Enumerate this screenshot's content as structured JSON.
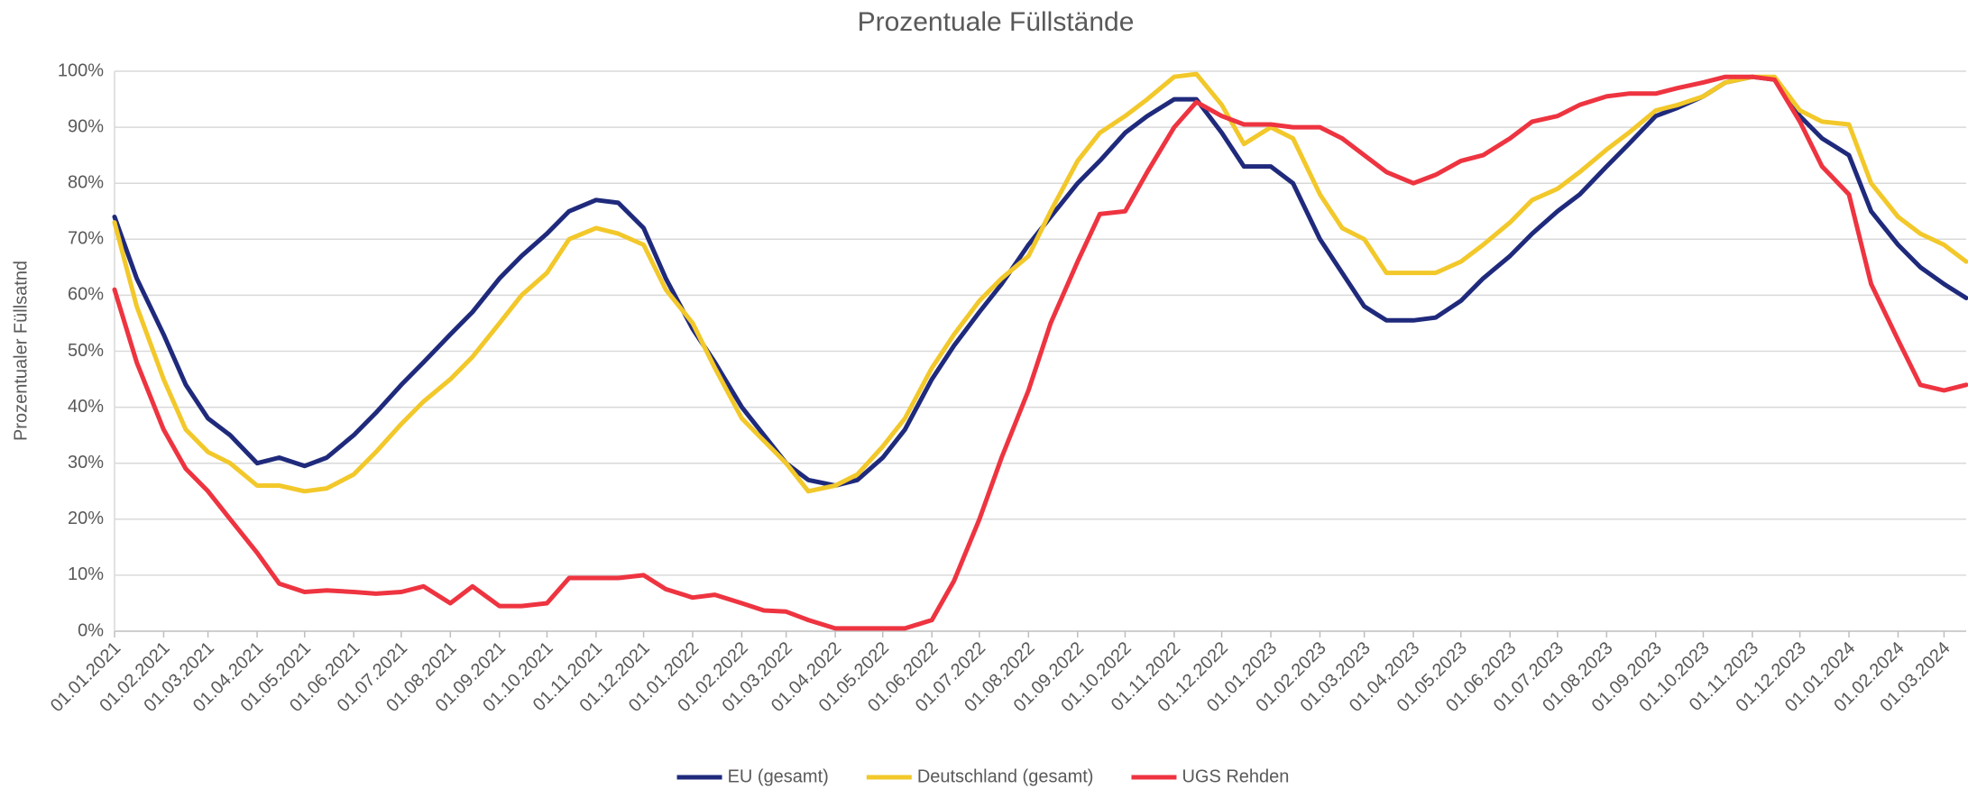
{
  "chart_data": {
    "type": "line",
    "title": "Prozentuale Füllstände",
    "y_label": "Prozentualer Füllsatnd",
    "x": [
      "2021-01-01",
      "2021-01-15",
      "2021-02-01",
      "2021-02-15",
      "2021-03-01",
      "2021-03-15",
      "2021-04-01",
      "2021-04-15",
      "2021-05-01",
      "2021-05-15",
      "2021-06-01",
      "2021-06-15",
      "2021-07-01",
      "2021-07-15",
      "2021-08-01",
      "2021-08-15",
      "2021-09-01",
      "2021-09-15",
      "2021-10-01",
      "2021-10-15",
      "2021-11-01",
      "2021-11-15",
      "2021-12-01",
      "2021-12-15",
      "2022-01-01",
      "2022-01-15",
      "2022-02-01",
      "2022-02-15",
      "2022-03-01",
      "2022-03-15",
      "2022-04-01",
      "2022-04-15",
      "2022-05-01",
      "2022-05-15",
      "2022-06-01",
      "2022-06-15",
      "2022-07-01",
      "2022-07-15",
      "2022-08-01",
      "2022-08-15",
      "2022-09-01",
      "2022-09-15",
      "2022-10-01",
      "2022-10-15",
      "2022-11-01",
      "2022-11-15",
      "2022-12-01",
      "2022-12-15",
      "2023-01-01",
      "2023-01-15",
      "2023-02-01",
      "2023-02-15",
      "2023-03-01",
      "2023-03-15",
      "2023-04-01",
      "2023-04-15",
      "2023-05-01",
      "2023-05-15",
      "2023-06-01",
      "2023-06-15",
      "2023-07-01",
      "2023-07-15",
      "2023-08-01",
      "2023-08-15",
      "2023-09-01",
      "2023-09-15",
      "2023-10-01",
      "2023-10-15",
      "2023-11-01",
      "2023-11-15",
      "2023-12-01",
      "2023-12-15",
      "2024-01-01",
      "2024-01-15",
      "2024-02-01",
      "2024-02-15",
      "2024-03-01",
      "2024-03-15"
    ],
    "series": [
      {
        "name": "EU (gesamt)",
        "color": "#1f2a7c",
        "values": [
          74,
          63,
          53,
          44,
          38,
          35,
          30,
          31,
          29.5,
          31,
          35,
          39,
          44,
          48,
          53,
          57,
          63,
          67,
          71,
          75,
          77,
          76.5,
          72,
          63,
          54,
          48,
          40,
          35,
          30,
          27,
          26,
          27,
          31,
          36,
          45,
          51,
          57,
          62,
          69,
          74,
          80,
          84,
          89,
          92,
          95,
          95,
          89,
          83,
          83,
          80,
          70,
          64,
          58,
          55.5,
          55.5,
          56,
          59,
          63,
          67,
          71,
          75,
          78,
          83,
          87,
          92,
          93.5,
          95.5,
          98,
          99,
          98.5,
          92,
          88,
          85,
          75,
          69,
          65,
          62,
          59.5
        ]
      },
      {
        "name": "Deutschland (gesamt)",
        "color": "#f2c82a",
        "values": [
          73,
          58,
          45,
          36,
          32,
          30,
          26,
          26,
          25,
          25.5,
          28,
          32,
          37,
          41,
          45,
          49,
          55,
          60,
          64,
          70,
          72,
          71,
          69,
          61,
          55,
          47,
          38,
          34,
          30,
          25,
          26,
          28,
          33,
          38,
          47,
          53,
          59,
          63,
          67,
          75,
          84,
          89,
          92,
          95,
          99,
          99.5,
          94,
          87,
          90,
          88,
          78,
          72,
          70,
          64,
          64,
          64,
          66,
          69,
          73,
          77,
          79,
          82,
          86,
          89,
          93,
          94,
          95.5,
          98,
          99,
          99,
          93,
          91,
          90.5,
          80,
          74,
          71,
          69,
          66
        ]
      },
      {
        "name": "UGS Rehden",
        "color": "#ee3440",
        "values": [
          61,
          48,
          36,
          29,
          25,
          20,
          14,
          8.5,
          7,
          7.3,
          7,
          6.7,
          7,
          8,
          5,
          8,
          4.5,
          4.5,
          5,
          9.5,
          9.5,
          9.5,
          10,
          7.5,
          6,
          6.5,
          5,
          3.7,
          3.5,
          2,
          0.5,
          0.5,
          0.5,
          0.5,
          2,
          9,
          20,
          31,
          43,
          55,
          66,
          74.5,
          75,
          82,
          90,
          94.5,
          92,
          90.5,
          90.5,
          90,
          90,
          88,
          85,
          82,
          80,
          81.5,
          84,
          85,
          88,
          91,
          92,
          94,
          95.5,
          96,
          96,
          97,
          98,
          99,
          99,
          98.5,
          91,
          83,
          78,
          62,
          52,
          44,
          43,
          44
        ]
      }
    ],
    "xlim": [
      "2021-01-01",
      "2024-03-15"
    ],
    "xticks": [
      {
        "value": "2021-01-01",
        "label": "01.01.2021"
      },
      {
        "value": "2021-02-01",
        "label": "01.02.2021"
      },
      {
        "value": "2021-03-01",
        "label": "01.03.2021"
      },
      {
        "value": "2021-04-01",
        "label": "01.04.2021"
      },
      {
        "value": "2021-05-01",
        "label": "01.05.2021"
      },
      {
        "value": "2021-06-01",
        "label": "01.06.2021"
      },
      {
        "value": "2021-07-01",
        "label": "01.07.2021"
      },
      {
        "value": "2021-08-01",
        "label": "01.08.2021"
      },
      {
        "value": "2021-09-01",
        "label": "01.09.2021"
      },
      {
        "value": "2021-10-01",
        "label": "01.10.2021"
      },
      {
        "value": "2021-11-01",
        "label": "01.11.2021"
      },
      {
        "value": "2021-12-01",
        "label": "01.12.2021"
      },
      {
        "value": "2022-01-01",
        "label": "01.01.2022"
      },
      {
        "value": "2022-02-01",
        "label": "01.02.2022"
      },
      {
        "value": "2022-03-01",
        "label": "01.03.2022"
      },
      {
        "value": "2022-04-01",
        "label": "01.04.2022"
      },
      {
        "value": "2022-05-01",
        "label": "01.05.2022"
      },
      {
        "value": "2022-06-01",
        "label": "01.06.2022"
      },
      {
        "value": "2022-07-01",
        "label": "01.07.2022"
      },
      {
        "value": "2022-08-01",
        "label": "01.08.2022"
      },
      {
        "value": "2022-09-01",
        "label": "01.09.2022"
      },
      {
        "value": "2022-10-01",
        "label": "01.10.2022"
      },
      {
        "value": "2022-11-01",
        "label": "01.11.2022"
      },
      {
        "value": "2022-12-01",
        "label": "01.12.2022"
      },
      {
        "value": "2023-01-01",
        "label": "01.01.2023"
      },
      {
        "value": "2023-02-01",
        "label": "01.02.2023"
      },
      {
        "value": "2023-03-01",
        "label": "01.03.2023"
      },
      {
        "value": "2023-04-01",
        "label": "01.04.2023"
      },
      {
        "value": "2023-05-01",
        "label": "01.05.2023"
      },
      {
        "value": "2023-06-01",
        "label": "01.06.2023"
      },
      {
        "value": "2023-07-01",
        "label": "01.07.2023"
      },
      {
        "value": "2023-08-01",
        "label": "01.08.2023"
      },
      {
        "value": "2023-09-01",
        "label": "01.09.2023"
      },
      {
        "value": "2023-10-01",
        "label": "01.10.2023"
      },
      {
        "value": "2023-11-01",
        "label": "01.11.2023"
      },
      {
        "value": "2023-12-01",
        "label": "01.12.2023"
      },
      {
        "value": "2024-01-01",
        "label": "01.01.2024"
      },
      {
        "value": "2024-02-01",
        "label": "01.02.2024"
      },
      {
        "value": "2024-03-01",
        "label": "01.03.2024"
      }
    ],
    "ylim": [
      0,
      100
    ],
    "yticks": [
      {
        "value": 0,
        "label": "0%"
      },
      {
        "value": 10,
        "label": "10%"
      },
      {
        "value": 20,
        "label": "20%"
      },
      {
        "value": 30,
        "label": "30%"
      },
      {
        "value": 40,
        "label": "40%"
      },
      {
        "value": 50,
        "label": "50%"
      },
      {
        "value": 60,
        "label": "60%"
      },
      {
        "value": 70,
        "label": "70%"
      },
      {
        "value": 80,
        "label": "80%"
      },
      {
        "value": 90,
        "label": "90%"
      },
      {
        "value": 100,
        "label": "100%"
      }
    ],
    "grid": true,
    "legend": "bottom"
  }
}
